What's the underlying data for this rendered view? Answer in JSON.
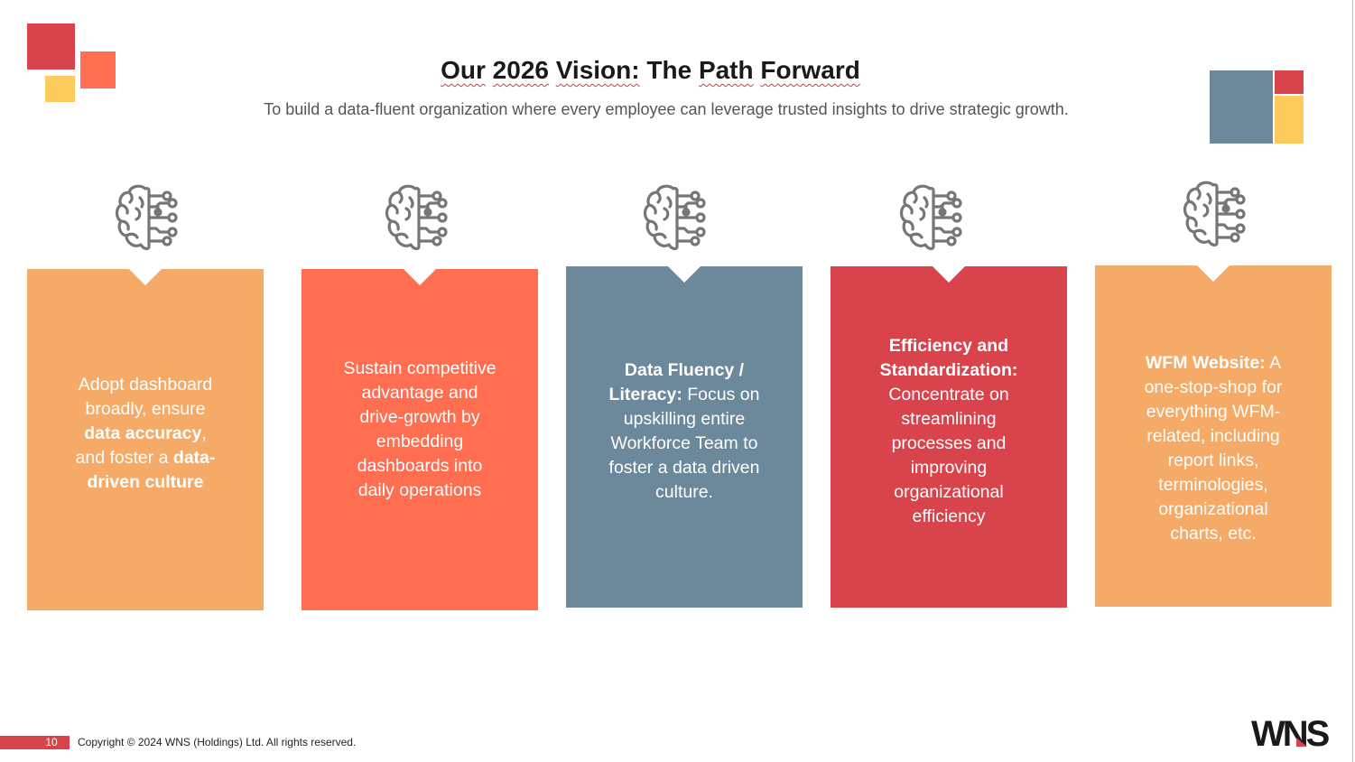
{
  "slide": {
    "title_parts": [
      "Our",
      "2026",
      "Vision:",
      "The",
      "Path",
      "Forward"
    ],
    "subtitle": "To build a data-fluent organization where every employee can leverage trusted insights to drive strategic growth."
  },
  "colors": {
    "peach": "#f6aa68",
    "coral": "#ff6e50",
    "slate": "#6c889b",
    "red": "#d9444c",
    "yellow": "#fdcb5d",
    "icon_gray": "#767676"
  },
  "cards": [
    {
      "icon": "brain-circuit-icon",
      "p1": "Adopt dashboard broadly, ensure ",
      "b1": "data accuracy",
      "p2": ", and foster a ",
      "b2": "data-driven culture"
    },
    {
      "icon": "brain-circuit-icon",
      "p1": "Sustain competitive advantage and drive-growth by embedding dashboards into daily operations"
    },
    {
      "icon": "brain-circuit-icon",
      "b1": "Data Fluency / Literacy:",
      "p1": " Focus on upskilling entire Workforce Team to foster a data driven culture."
    },
    {
      "icon": "brain-circuit-icon",
      "b1": "Efficiency and Standardization:",
      "p1": " Concentrate on streamlining processes and improving organizational efficiency"
    },
    {
      "icon": "brain-circuit-icon",
      "b1": "WFM Website:",
      "p1": " A one-stop-shop for everything WFM-related, including report links, terminologies, organizational charts, etc."
    }
  ],
  "footer": {
    "page_number": "10",
    "copyright": "Copyright © 2024 WNS (Holdings) Ltd. All rights reserved.",
    "logo": "WNS"
  }
}
